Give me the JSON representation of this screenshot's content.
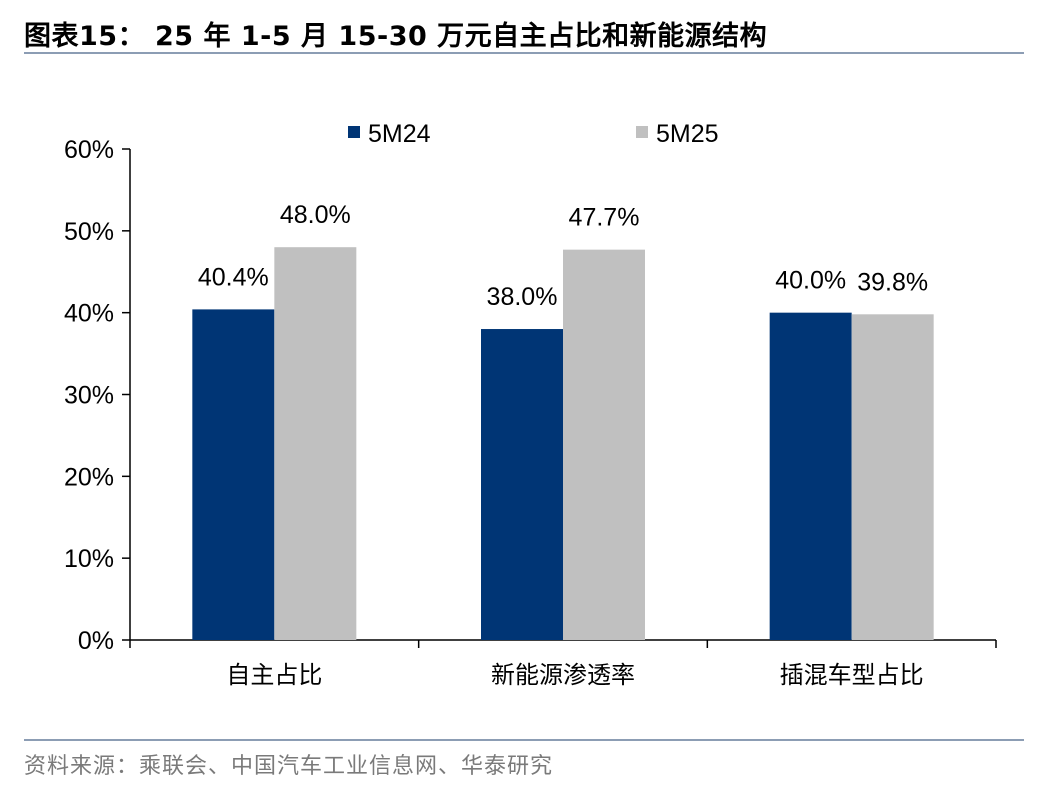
{
  "header": {
    "title": "图表15： 25 年 1-5 月 15-30 万元自主占比和新能源结构"
  },
  "footer": {
    "source": "资料来源：乘联会、中国汽车工业信息网、华泰研究"
  },
  "chart_data": {
    "type": "bar",
    "categories": [
      "自主占比",
      "新能源渗透率",
      "插混车型占比"
    ],
    "series": [
      {
        "name": "5M24",
        "values": [
          40.4,
          38.0,
          40.0
        ],
        "labels": [
          "40.4%",
          "38.0%",
          "40.0%"
        ],
        "color": "#003575"
      },
      {
        "name": "5M25",
        "values": [
          48.0,
          47.7,
          39.8
        ],
        "labels": [
          "48.0%",
          "47.7%",
          "39.8%"
        ],
        "color": "#c0c0c0"
      }
    ],
    "ylim": [
      0,
      60
    ],
    "yticks": [
      "0%",
      "10%",
      "20%",
      "30%",
      "40%",
      "50%",
      "60%"
    ],
    "legend_position": "top",
    "grid": false
  }
}
